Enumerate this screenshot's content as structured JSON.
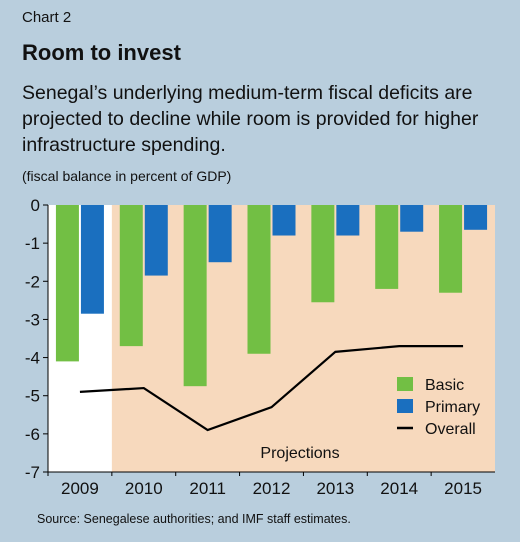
{
  "header": {
    "chart_label": "Chart 2",
    "title": "Room to invest",
    "subtitle": "Senegal’s underlying medium-term fiscal deficits are projected to decline while room is provided for higher infrastructure spending.",
    "unit": "(fiscal balance in percent of GDP)"
  },
  "footer": {
    "source": "Source: Senegalese authorities; and IMF staff estimates."
  },
  "colors": {
    "background": "#b9cedd",
    "projection_shade": "#f7d9bd",
    "basic": "#72bf44",
    "primary": "#1a6fbf",
    "overall": "#000000"
  },
  "chart_data": {
    "type": "bar",
    "categories": [
      "2009",
      "2010",
      "2011",
      "2012",
      "2013",
      "2014",
      "2015"
    ],
    "series": [
      {
        "name": "Basic",
        "type": "bar",
        "values": [
          -4.1,
          -3.7,
          -4.75,
          -3.9,
          -2.55,
          -2.2,
          -2.3
        ]
      },
      {
        "name": "Primary",
        "type": "bar",
        "values": [
          -2.85,
          -1.85,
          -1.5,
          -0.8,
          -0.8,
          -0.7,
          -0.65
        ]
      },
      {
        "name": "Overall",
        "type": "line",
        "values": [
          -4.9,
          -4.8,
          -5.9,
          -5.3,
          -3.85,
          -3.7,
          -3.7
        ]
      }
    ],
    "ylim": [
      -7,
      0
    ],
    "yticks": [
      "0",
      "-1",
      "-2",
      "-3",
      "-4",
      "-5",
      "-6",
      "-7"
    ],
    "annotation": "Projections",
    "legend_position": "bottom-right",
    "grid": false
  }
}
